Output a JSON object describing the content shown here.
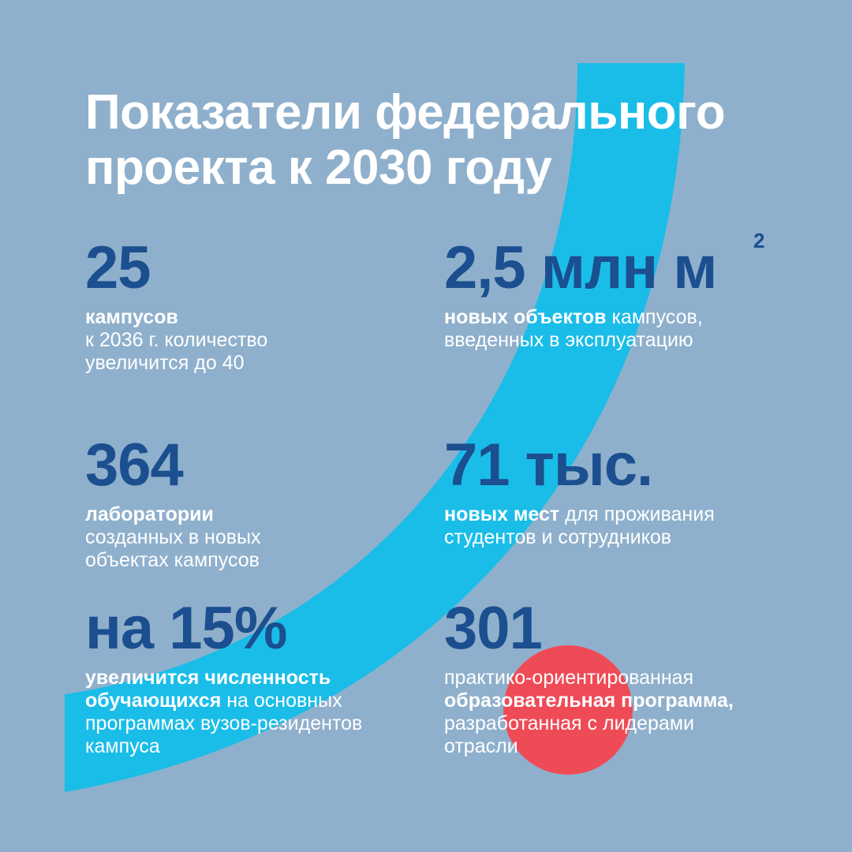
{
  "title": {
    "line1": "Показатели федерального",
    "line2": "проекта к 2030 году"
  },
  "colors": {
    "background": "#8fb0cc",
    "arc": "#1abde8",
    "circle": "#ef4b57",
    "value_text": "#1b4f8f",
    "body_text": "#ffffff"
  },
  "stats": {
    "campuses": {
      "value": "25",
      "bold": "кампусов",
      "line1": "к 2036 г. количество",
      "line2": "увеличится до 40"
    },
    "area": {
      "value": "2,5 млн м",
      "sup": "2",
      "bold": "новых объектов",
      "line1_rest": " кампусов,",
      "line2": "введенных в эксплуатацию"
    },
    "labs": {
      "value": "364",
      "bold": "лаборатории",
      "line1": "созданных в новых",
      "line2": "объектах кампусов"
    },
    "places": {
      "value": "71 тыс.",
      "bold": "новых мест",
      "line1_rest": " для проживания",
      "line2": "студентов и сотрудников"
    },
    "students": {
      "value": "на 15%",
      "bold1": "увеличится численность",
      "bold2": "обучающихся",
      "line2_rest": " на основных",
      "line3": "программах вузов-резидентов",
      "line4": "кампуса"
    },
    "programs": {
      "value": "301",
      "line1": "практико-ориентированная",
      "bold": "образовательная программа,",
      "line3": "разработанная с лидерами",
      "line4": "отрасли"
    }
  }
}
